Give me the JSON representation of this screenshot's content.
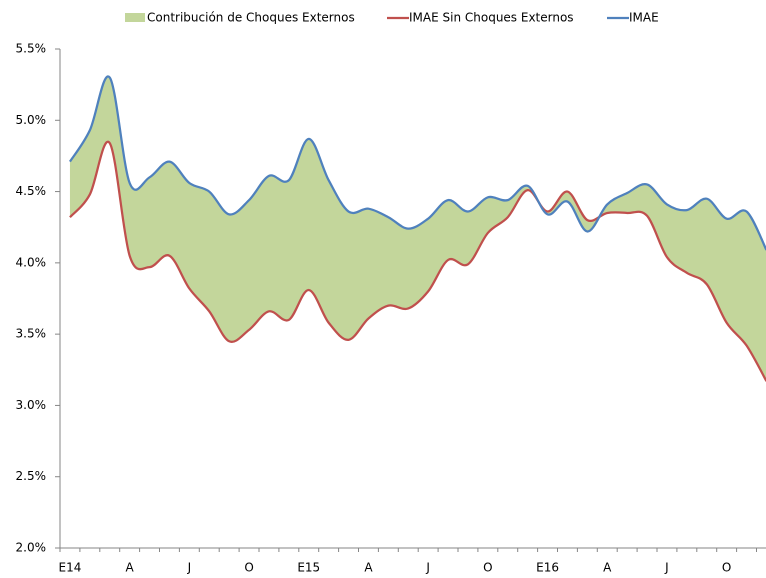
{
  "chart_data": {
    "type": "line",
    "categories": [
      "E14",
      null,
      null,
      "A",
      null,
      null,
      "J",
      null,
      null,
      "O",
      null,
      null,
      "E15",
      null,
      null,
      "A",
      null,
      null,
      "J",
      null,
      null,
      "O",
      null,
      null,
      "E16",
      null,
      null,
      "A",
      null,
      null,
      "J",
      null,
      null,
      "O",
      null,
      null
    ],
    "series": [
      {
        "name": "Contribución de Choques Externos",
        "color": "#c3d69b",
        "type": "area",
        "stacked_on": 1,
        "values": [
          0.39,
          0.45,
          0.46,
          0.51,
          0.63,
          0.66,
          0.74,
          0.84,
          0.89,
          0.91,
          0.95,
          0.98,
          1.06,
          1.0,
          0.9,
          0.77,
          0.62,
          0.56,
          0.51,
          0.42,
          0.37,
          0.25,
          0.12,
          0.03,
          -0.02,
          -0.07,
          -0.08,
          0.06,
          0.14,
          0.22,
          0.37,
          0.44,
          0.6,
          0.73,
          0.94,
          0.92
        ]
      },
      {
        "name": "IMAE Sin Choques Externos",
        "color": "#c0504d",
        "values": [
          4.32,
          4.48,
          4.84,
          4.05,
          3.97,
          4.05,
          3.82,
          3.66,
          3.45,
          3.53,
          3.66,
          3.6,
          3.81,
          3.58,
          3.46,
          3.61,
          3.7,
          3.68,
          3.8,
          4.02,
          3.99,
          4.21,
          4.32,
          4.51,
          4.36,
          4.5,
          4.3,
          4.35,
          4.35,
          4.33,
          4.04,
          3.93,
          3.85,
          3.58,
          3.42,
          3.17
        ]
      },
      {
        "name": "IMAE",
        "color": "#4f81bd",
        "values": [
          4.71,
          4.93,
          5.3,
          4.56,
          4.6,
          4.71,
          4.56,
          4.5,
          4.34,
          4.44,
          4.61,
          4.58,
          4.87,
          4.58,
          4.36,
          4.38,
          4.32,
          4.24,
          4.31,
          4.44,
          4.36,
          4.46,
          4.44,
          4.54,
          4.34,
          4.43,
          4.22,
          4.41,
          4.49,
          4.55,
          4.41,
          4.37,
          4.45,
          4.31,
          4.36,
          4.09
        ]
      }
    ],
    "ylim": [
      2.0,
      5.5
    ],
    "yticks": [
      {
        "value": 2.0,
        "label": "2.0%"
      },
      {
        "value": 2.5,
        "label": "2.5%"
      },
      {
        "value": 3.0,
        "label": "3.0%"
      },
      {
        "value": 3.5,
        "label": "3.5%"
      },
      {
        "value": 4.0,
        "label": "4.0%"
      },
      {
        "value": 4.5,
        "label": "4.5%"
      },
      {
        "value": 5.0,
        "label": "5.0%"
      },
      {
        "value": 5.5,
        "label": "5.5%"
      }
    ],
    "grid": false,
    "legend": "top"
  }
}
